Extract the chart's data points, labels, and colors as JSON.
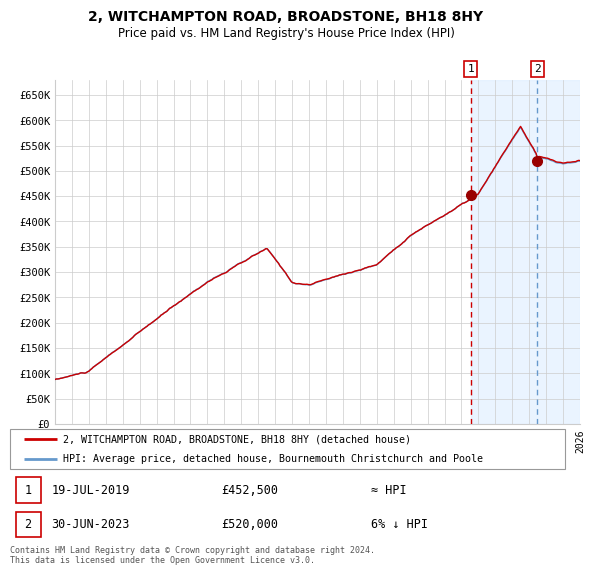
{
  "title": "2, WITCHAMPTON ROAD, BROADSTONE, BH18 8HY",
  "subtitle": "Price paid vs. HM Land Registry's House Price Index (HPI)",
  "legend_line1": "2, WITCHAMPTON ROAD, BROADSTONE, BH18 8HY (detached house)",
  "legend_line2": "HPI: Average price, detached house, Bournemouth Christchurch and Poole",
  "footnote": "Contains HM Land Registry data © Crown copyright and database right 2024.\nThis data is licensed under the Open Government Licence v3.0.",
  "transaction1_date": "19-JUL-2019",
  "transaction1_price": "£452,500",
  "transaction1_hpi": "≈ HPI",
  "transaction2_date": "30-JUN-2023",
  "transaction2_price": "£520,000",
  "transaction2_hpi": "6% ↓ HPI",
  "ylim": [
    0,
    680000
  ],
  "yticks": [
    0,
    50000,
    100000,
    150000,
    200000,
    250000,
    300000,
    350000,
    400000,
    450000,
    500000,
    550000,
    600000,
    650000
  ],
  "ytick_labels": [
    "£0",
    "£50K",
    "£100K",
    "£150K",
    "£200K",
    "£250K",
    "£300K",
    "£350K",
    "£400K",
    "£450K",
    "£500K",
    "£550K",
    "£600K",
    "£650K"
  ],
  "hpi_color": "#6699cc",
  "price_color": "#cc0000",
  "dot_color": "#990000",
  "vline1_color": "#cc0000",
  "vline2_color": "#6699cc",
  "bg_shade_color": "#ddeeff",
  "grid_color": "#cccccc",
  "box_edge_color": "#cc0000",
  "start_year": 1995,
  "end_year": 2026,
  "transaction1_year": 2019.54,
  "transaction2_year": 2023.49,
  "price_at_t1": 452500,
  "price_at_t2": 520000
}
